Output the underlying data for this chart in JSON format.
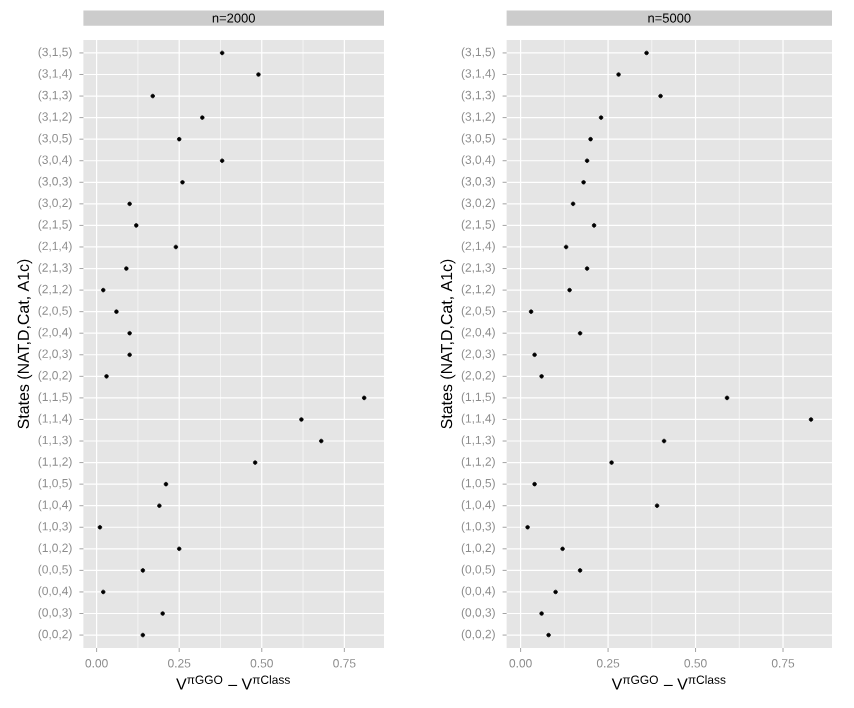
{
  "chart_data": [
    {
      "type": "scatter",
      "title": "n=2000",
      "xlabel": "V$^{πGGO}$ – V$^{πClass}$",
      "ylabel": "States (NAT,D,Cat, A1c)",
      "orientation": "horizontal",
      "categories": [
        "(3,1,5)",
        "(3,1,4)",
        "(3,1,3)",
        "(3,1,2)",
        "(3,0,5)",
        "(3,0,4)",
        "(3,0,3)",
        "(3,0,2)",
        "(2,1,5)",
        "(2,1,4)",
        "(2,1,3)",
        "(2,1,2)",
        "(2,0,5)",
        "(2,0,4)",
        "(2,0,3)",
        "(2,0,2)",
        "(1,1,5)",
        "(1,1,4)",
        "(1,1,3)",
        "(1,1,2)",
        "(1,0,5)",
        "(1,0,4)",
        "(1,0,3)",
        "(1,0,2)",
        "(0,0,5)",
        "(0,0,4)",
        "(0,0,3)",
        "(0,0,2)"
      ],
      "values": [
        0.38,
        0.49,
        0.17,
        0.32,
        0.25,
        0.38,
        0.26,
        0.1,
        0.12,
        0.24,
        0.09,
        0.02,
        0.06,
        0.1,
        0.1,
        0.03,
        0.81,
        0.62,
        0.68,
        0.48,
        0.21,
        0.19,
        0.01,
        0.25,
        0.14,
        0.02,
        0.2,
        0.14
      ],
      "color": "#000000",
      "marker": "circle",
      "grid": true,
      "xlim": [
        -0.04,
        0.87
      ],
      "xticks": [
        {
          "value": 0,
          "label": "0.00"
        },
        {
          "value": 0.25,
          "label": "0.25"
        },
        {
          "value": 0.5,
          "label": "0.50"
        },
        {
          "value": 0.75,
          "label": "0.75"
        }
      ]
    },
    {
      "type": "scatter",
      "title": "n=5000",
      "xlabel": "V$^{πGGO}$ – V$^{πClass}$",
      "ylabel": "States (NAT,D,Cat, A1c)",
      "orientation": "horizontal",
      "categories": [
        "(3,1,5)",
        "(3,1,4)",
        "(3,1,3)",
        "(3,1,2)",
        "(3,0,5)",
        "(3,0,4)",
        "(3,0,3)",
        "(3,0,2)",
        "(2,1,5)",
        "(2,1,4)",
        "(2,1,3)",
        "(2,1,2)",
        "(2,0,5)",
        "(2,0,4)",
        "(2,0,3)",
        "(2,0,2)",
        "(1,1,5)",
        "(1,1,4)",
        "(1,1,3)",
        "(1,1,2)",
        "(1,0,5)",
        "(1,0,4)",
        "(1,0,3)",
        "(1,0,2)",
        "(0,0,5)",
        "(0,0,4)",
        "(0,0,3)",
        "(0,0,2)"
      ],
      "values": [
        0.36,
        0.28,
        0.4,
        0.23,
        0.2,
        0.19,
        0.18,
        0.15,
        0.21,
        0.13,
        0.19,
        0.14,
        0.03,
        0.17,
        0.04,
        0.06,
        0.59,
        0.83,
        0.41,
        0.26,
        0.04,
        0.39,
        0.02,
        0.12,
        0.17,
        0.1,
        0.06,
        0.08
      ],
      "color": "#000000",
      "marker": "circle",
      "grid": true,
      "xlim": [
        -0.04,
        0.89
      ],
      "xticks": [
        {
          "value": 0,
          "label": "0.00"
        },
        {
          "value": 0.25,
          "label": "0.25"
        },
        {
          "value": 0.5,
          "label": "0.50"
        },
        {
          "value": 0.75,
          "label": "0.75"
        }
      ]
    }
  ]
}
